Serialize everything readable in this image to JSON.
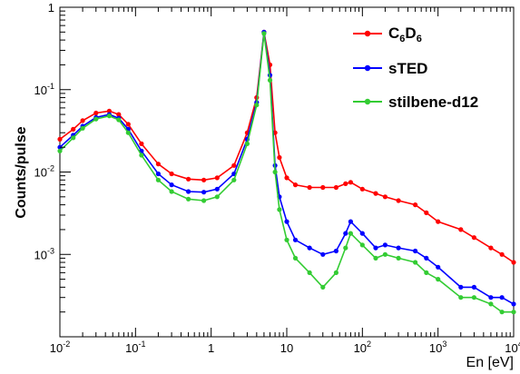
{
  "chart_data": {
    "type": "line",
    "xscale": "log",
    "yscale": "log",
    "xlim": [
      0.01,
      10000
    ],
    "ylim": [
      0.0001,
      1
    ],
    "xlabel": "En [eV]",
    "ylabel": "Counts/pulse",
    "x_tick_labels": [
      {
        "base": "10",
        "exp": "-2",
        "value": 0.01
      },
      {
        "base": "10",
        "exp": "-1",
        "value": 0.1
      },
      {
        "base": "1",
        "exp": "",
        "value": 1
      },
      {
        "base": "10",
        "exp": "",
        "value": 10
      },
      {
        "base": "10",
        "exp": "2",
        "value": 100
      },
      {
        "base": "10",
        "exp": "3",
        "value": 1000
      },
      {
        "base": "10",
        "exp": "4",
        "value": 10000
      }
    ],
    "y_tick_labels": [
      {
        "base": "1",
        "exp": "",
        "value": 1
      },
      {
        "base": "10",
        "exp": "-1",
        "value": 0.1
      },
      {
        "base": "10",
        "exp": "-2",
        "value": 0.01
      },
      {
        "base": "10",
        "exp": "-3",
        "value": 0.001
      }
    ],
    "legend_position": "top-right",
    "grid": false,
    "series": [
      {
        "name": "C6D6",
        "name_main": "C",
        "name_sub1": "6",
        "name_mid": "D",
        "name_sub2": "6",
        "color": "#ff0000",
        "x": [
          0.01,
          0.015,
          0.02,
          0.03,
          0.045,
          0.06,
          0.08,
          0.12,
          0.2,
          0.3,
          0.5,
          0.8,
          1.2,
          2,
          3,
          4,
          5,
          6,
          7,
          8,
          10,
          13,
          20,
          30,
          45,
          60,
          70,
          100,
          150,
          200,
          300,
          500,
          700,
          1000,
          2000,
          3000,
          5000,
          7000,
          10000
        ],
        "y": [
          0.025,
          0.033,
          0.042,
          0.052,
          0.055,
          0.05,
          0.038,
          0.022,
          0.0125,
          0.0095,
          0.0082,
          0.008,
          0.0085,
          0.012,
          0.03,
          0.08,
          0.5,
          0.2,
          0.03,
          0.015,
          0.0085,
          0.007,
          0.0065,
          0.0065,
          0.0065,
          0.0072,
          0.0075,
          0.0062,
          0.0055,
          0.005,
          0.0045,
          0.004,
          0.0032,
          0.0025,
          0.002,
          0.0016,
          0.0012,
          0.001,
          0.0008
        ]
      },
      {
        "name": "sTED",
        "color": "#0000ff",
        "x": [
          0.01,
          0.015,
          0.02,
          0.03,
          0.045,
          0.06,
          0.08,
          0.12,
          0.2,
          0.3,
          0.5,
          0.8,
          1.2,
          2,
          3,
          4,
          5,
          6,
          7,
          8,
          10,
          13,
          20,
          30,
          45,
          60,
          70,
          100,
          150,
          200,
          300,
          500,
          700,
          1000,
          2000,
          3000,
          5000,
          7000,
          10000
        ],
        "y": [
          0.02,
          0.028,
          0.036,
          0.046,
          0.05,
          0.045,
          0.033,
          0.018,
          0.0095,
          0.007,
          0.0058,
          0.0057,
          0.0062,
          0.0095,
          0.025,
          0.07,
          0.5,
          0.15,
          0.012,
          0.005,
          0.0025,
          0.0015,
          0.0012,
          0.001,
          0.0011,
          0.0018,
          0.0025,
          0.0018,
          0.0012,
          0.0013,
          0.0012,
          0.0011,
          0.0009,
          0.0007,
          0.0004,
          0.0004,
          0.0003,
          0.0003,
          0.00025
        ]
      },
      {
        "name": "stilbene-d12",
        "color": "#33cc33",
        "x": [
          0.01,
          0.015,
          0.02,
          0.03,
          0.045,
          0.06,
          0.08,
          0.12,
          0.2,
          0.3,
          0.5,
          0.8,
          1.2,
          2,
          3,
          4,
          5,
          6,
          7,
          8,
          10,
          13,
          20,
          30,
          45,
          60,
          70,
          100,
          150,
          200,
          300,
          500,
          700,
          1000,
          2000,
          3000,
          5000,
          7000,
          10000
        ],
        "y": [
          0.018,
          0.026,
          0.034,
          0.044,
          0.048,
          0.043,
          0.03,
          0.016,
          0.008,
          0.0058,
          0.0047,
          0.0045,
          0.005,
          0.008,
          0.022,
          0.065,
          0.48,
          0.13,
          0.01,
          0.0035,
          0.0015,
          0.0009,
          0.0006,
          0.0004,
          0.0006,
          0.0012,
          0.0018,
          0.0013,
          0.0009,
          0.001,
          0.0009,
          0.0008,
          0.0006,
          0.0005,
          0.0003,
          0.0003,
          0.00025,
          0.0002,
          0.0002
        ]
      }
    ]
  }
}
